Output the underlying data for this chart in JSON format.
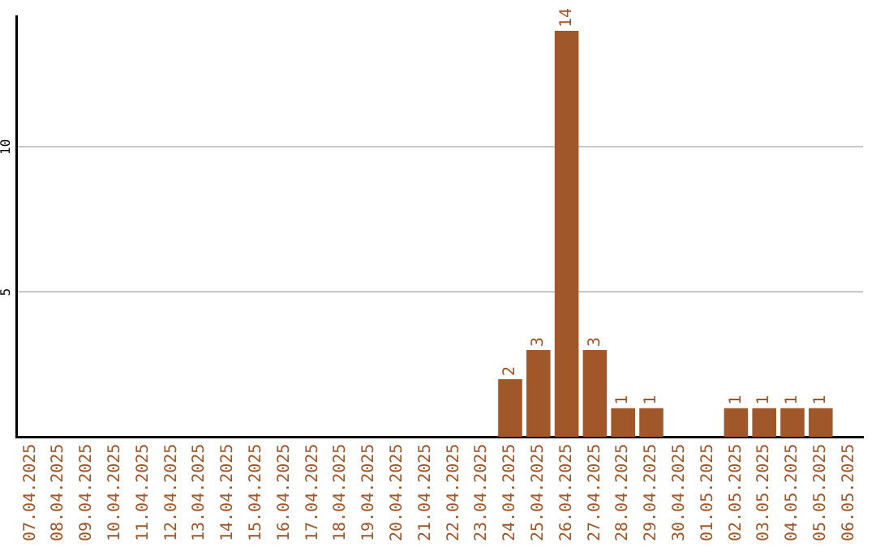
{
  "chart_data": {
    "type": "bar",
    "categories": [
      "07.04.2025",
      "08.04.2025",
      "09.04.2025",
      "10.04.2025",
      "11.04.2025",
      "12.04.2025",
      "13.04.2025",
      "14.04.2025",
      "15.04.2025",
      "16.04.2025",
      "17.04.2025",
      "18.04.2025",
      "19.04.2025",
      "20.04.2025",
      "21.04.2025",
      "22.04.2025",
      "23.04.2025",
      "24.04.2025",
      "25.04.2025",
      "26.04.2025",
      "27.04.2025",
      "28.04.2025",
      "29.04.2025",
      "30.04.2025",
      "01.05.2025",
      "02.05.2025",
      "03.05.2025",
      "04.05.2025",
      "05.05.2025",
      "06.05.2025"
    ],
    "values": [
      0,
      0,
      0,
      0,
      0,
      0,
      0,
      0,
      0,
      0,
      0,
      0,
      0,
      0,
      0,
      0,
      0,
      2,
      3,
      14,
      3,
      1,
      1,
      0,
      0,
      1,
      1,
      1,
      1,
      0
    ],
    "value_labels": [
      null,
      null,
      null,
      null,
      null,
      null,
      null,
      null,
      null,
      null,
      null,
      null,
      null,
      null,
      null,
      null,
      null,
      "2",
      "3",
      "14",
      "3",
      "1",
      "1",
      null,
      null,
      "1",
      "1",
      "1",
      "1",
      null
    ],
    "color": "#a0572a",
    "ylim": [
      0,
      14.5
    ],
    "yticks": [
      5,
      10
    ],
    "grid": "y",
    "legend": false
  }
}
